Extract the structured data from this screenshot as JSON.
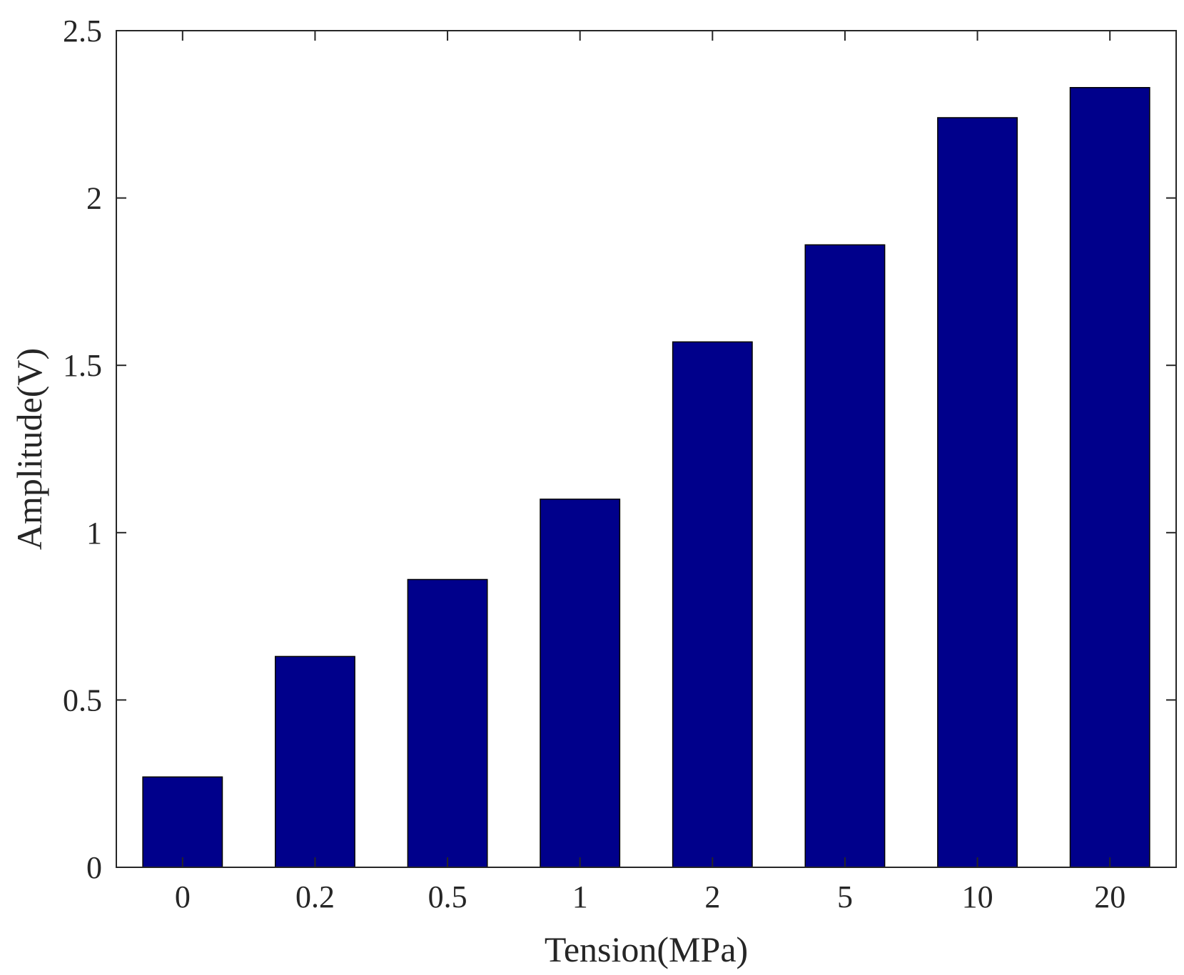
{
  "chart_data": {
    "type": "bar",
    "categories": [
      "0",
      "0.2",
      "0.5",
      "1",
      "2",
      "5",
      "10",
      "20"
    ],
    "values": [
      0.27,
      0.63,
      0.86,
      1.1,
      1.57,
      1.86,
      2.24,
      2.33
    ],
    "xlabel": "Tension(MPa)",
    "ylabel": "Amplitude(V)",
    "ylim": [
      0,
      2.5
    ],
    "yticks": [
      "0",
      "0.5",
      "1",
      "1.5",
      "2",
      "2.5"
    ],
    "grid": false,
    "bar_color": "#00008b"
  }
}
